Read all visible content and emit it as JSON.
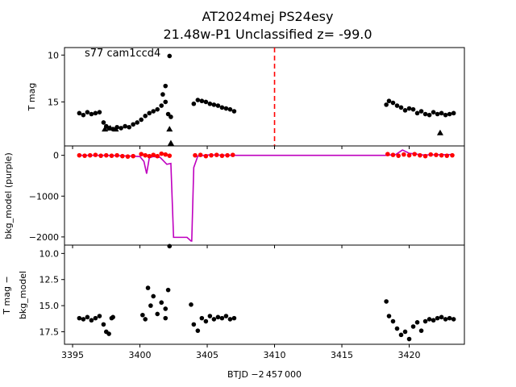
{
  "title_line1": "AT2024mej  PS24esy",
  "title_line2": "21.48w-P1 Unclassified z= -99.0",
  "chart_data": [
    {
      "type": "scatter",
      "panel": "top",
      "ylabel": "T mag",
      "annotation": "s77 cam1ccd4",
      "y_inverted": true,
      "xlim": [
        3394.4,
        3424.1
      ],
      "ylim": [
        19.7,
        9.2
      ],
      "y_ticks": [
        "10",
        "15"
      ],
      "y_tick_values": [
        10,
        15
      ],
      "vline_x": 3410.0,
      "vline_color": "#ff0000",
      "series": [
        {
          "marker": "dot",
          "color": "#000000",
          "x": [
            3395.5,
            3395.8,
            3396.1,
            3396.4,
            3396.7,
            3397.0,
            3397.3,
            3397.5,
            3397.7,
            3398.0,
            3398.3,
            3398.6,
            3398.9,
            3399.2,
            3399.5,
            3399.8,
            3400.1,
            3400.4,
            3400.7,
            3401.0,
            3401.3,
            3401.6,
            3401.9,
            3402.1,
            3402.3,
            3401.7,
            3401.9,
            3402.2,
            3404.0,
            3404.3,
            3404.6,
            3404.9,
            3405.2,
            3405.5,
            3405.8,
            3406.1,
            3406.4,
            3406.7,
            3407.0,
            3418.3,
            3418.5,
            3418.8,
            3419.1,
            3419.4,
            3419.7,
            3420.0,
            3420.3,
            3420.6,
            3420.9,
            3421.2,
            3421.5,
            3421.8,
            3422.1,
            3422.4,
            3422.7,
            3423.0,
            3423.3
          ],
          "y": [
            16.2,
            16.4,
            16.1,
            16.3,
            16.2,
            16.1,
            17.2,
            17.6,
            17.8,
            17.9,
            17.7,
            17.8,
            17.6,
            17.7,
            17.4,
            17.2,
            16.9,
            16.5,
            16.2,
            16.0,
            15.8,
            15.4,
            15.0,
            16.3,
            16.6,
            14.2,
            13.3,
            10.1,
            15.2,
            14.8,
            14.9,
            15.0,
            15.2,
            15.3,
            15.4,
            15.6,
            15.7,
            15.8,
            16.0,
            15.3,
            14.9,
            15.1,
            15.4,
            15.6,
            15.9,
            15.7,
            15.8,
            16.2,
            16.0,
            16.3,
            16.4,
            16.1,
            16.3,
            16.2,
            16.4,
            16.3,
            16.2
          ]
        },
        {
          "marker": "triangle",
          "color": "#000000",
          "x": [
            3397.4,
            3397.8,
            3398.2,
            3402.2,
            3402.3,
            3422.3
          ],
          "y": [
            17.9,
            17.8,
            17.9,
            17.9,
            19.4,
            18.3
          ]
        }
      ]
    },
    {
      "type": "line",
      "panel": "middle",
      "ylabel": "bkg_model (purple)",
      "xlim": [
        3394.4,
        3424.1
      ],
      "ylim": [
        -2200,
        230
      ],
      "y_ticks": [
        "0",
        "−1000",
        "−2000"
      ],
      "y_tick_values": [
        0,
        -1000,
        -2000
      ],
      "series": [
        {
          "marker": "line",
          "color": "#bf00bf",
          "x": [
            3395.5,
            3397.5,
            3398.5,
            3399.5,
            3400.0,
            3400.3,
            3400.5,
            3400.7,
            3401.0,
            3401.5,
            3402.0,
            3402.3,
            3402.5,
            3403.5,
            3403.8,
            3403.85,
            3404.0,
            3404.3,
            3405.0,
            3407.0,
            3410.0,
            3415.0,
            3418.3,
            3419.0,
            3419.5,
            3420.0,
            3421.0,
            3423.3
          ],
          "y": [
            0,
            0,
            -10,
            -20,
            -30,
            -150,
            -450,
            -60,
            -30,
            -50,
            -220,
            -200,
            -2010,
            -2010,
            -2100,
            -2100,
            -300,
            -20,
            10,
            0,
            0,
            0,
            0,
            20,
            130,
            50,
            10,
            20
          ]
        },
        {
          "marker": "dot",
          "color": "#ff0000",
          "x": [
            3395.5,
            3395.9,
            3396.3,
            3396.7,
            3397.1,
            3397.5,
            3397.9,
            3398.3,
            3398.7,
            3399.1,
            3399.5,
            3400.1,
            3400.4,
            3400.7,
            3401.0,
            3401.3,
            3401.6,
            3401.9,
            3402.2,
            3404.1,
            3404.5,
            3404.9,
            3405.3,
            3405.7,
            3406.1,
            3406.5,
            3406.9,
            3418.4,
            3418.8,
            3419.2,
            3419.6,
            3420.0,
            3420.4,
            3420.8,
            3421.2,
            3421.6,
            3422.0,
            3422.4,
            3422.8,
            3423.2
          ],
          "y": [
            0,
            -10,
            0,
            10,
            -10,
            0,
            -10,
            0,
            -20,
            -30,
            -20,
            30,
            0,
            -20,
            10,
            -20,
            40,
            20,
            -10,
            0,
            10,
            -20,
            0,
            10,
            -10,
            0,
            10,
            30,
            10,
            -10,
            20,
            0,
            30,
            0,
            -20,
            20,
            10,
            0,
            -10,
            0
          ]
        }
      ]
    },
    {
      "type": "scatter",
      "panel": "bottom",
      "ylabel_line1": "T mag −",
      "ylabel_line2": "bkg_model",
      "y_inverted": true,
      "xlim": [
        3394.4,
        3424.1
      ],
      "ylim": [
        18.7,
        9.2
      ],
      "y_ticks": [
        "10.0",
        "12.5",
        "15.0",
        "17.5"
      ],
      "y_tick_values": [
        10.0,
        12.5,
        15.0,
        17.5
      ],
      "xlabel": "BTJD −2 457 000",
      "x_ticks": [
        "3395",
        "3400",
        "3405",
        "3410",
        "3415",
        "3420"
      ],
      "x_tick_values": [
        3395,
        3400,
        3405,
        3410,
        3415,
        3420
      ],
      "series": [
        {
          "marker": "dot",
          "color": "#000000",
          "x": [
            3395.5,
            3395.8,
            3396.1,
            3396.4,
            3396.7,
            3397.0,
            3397.3,
            3397.5,
            3397.7,
            3397.9,
            3398.0,
            3400.2,
            3400.4,
            3400.6,
            3400.8,
            3401.0,
            3401.3,
            3401.6,
            3401.9,
            3402.1,
            3402.2,
            3401.9,
            3403.8,
            3404.0,
            3404.3,
            3404.6,
            3404.9,
            3405.2,
            3405.5,
            3405.8,
            3406.1,
            3406.4,
            3406.7,
            3407.0,
            3418.3,
            3418.5,
            3418.8,
            3419.1,
            3419.4,
            3419.7,
            3420.0,
            3420.3,
            3420.6,
            3420.9,
            3421.2,
            3421.5,
            3421.8,
            3422.1,
            3422.4,
            3422.7,
            3423.0,
            3423.3
          ],
          "y": [
            16.2,
            16.3,
            16.1,
            16.4,
            16.2,
            16.0,
            16.8,
            17.5,
            17.7,
            16.2,
            16.1,
            15.9,
            16.3,
            13.3,
            15.0,
            14.1,
            15.8,
            14.7,
            15.3,
            13.5,
            9.3,
            16.2,
            14.9,
            16.8,
            17.4,
            16.2,
            16.5,
            16.0,
            16.3,
            16.1,
            16.2,
            16.0,
            16.3,
            16.2,
            14.6,
            16.0,
            16.5,
            17.2,
            17.8,
            17.5,
            18.2,
            17.0,
            16.6,
            17.4,
            16.5,
            16.3,
            16.4,
            16.2,
            16.1,
            16.3,
            16.2,
            16.3
          ]
        }
      ]
    }
  ]
}
